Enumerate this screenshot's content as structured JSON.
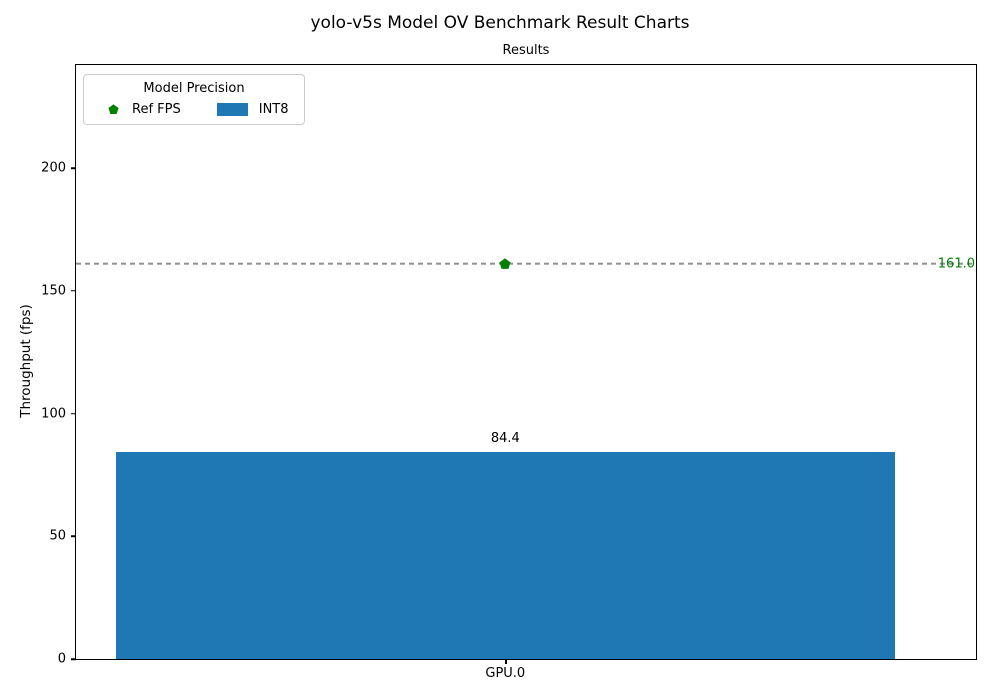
{
  "figure": {
    "title": "yolo-v5s Model OV Benchmark Result Charts"
  },
  "chart_data": {
    "type": "bar",
    "title": "Results",
    "xlabel": "",
    "ylabel": "Throughput (fps)",
    "categories": [
      "GPU.0"
    ],
    "series": [
      {
        "name": "INT8",
        "kind": "bar",
        "values": [
          84.4
        ],
        "value_labels": [
          "84.4"
        ],
        "color": "#1f77b4"
      },
      {
        "name": "Ref FPS",
        "kind": "reference-line",
        "values": [
          161.0
        ],
        "value_labels": [
          "161.0"
        ],
        "color": "#008000",
        "marker": "pentagon",
        "line_color": "#909090",
        "line_style": "dashed"
      }
    ],
    "ylim": [
      0,
      242
    ],
    "yticks": [
      0,
      50,
      100,
      150,
      200
    ],
    "grid": false,
    "legend": {
      "title": "Model Precision",
      "position": "upper-left",
      "entries": [
        {
          "label": "Ref FPS",
          "symbol": "pentagon-marker",
          "color": "#008000"
        },
        {
          "label": "INT8",
          "symbol": "color-patch",
          "color": "#1f77b4"
        }
      ]
    }
  }
}
